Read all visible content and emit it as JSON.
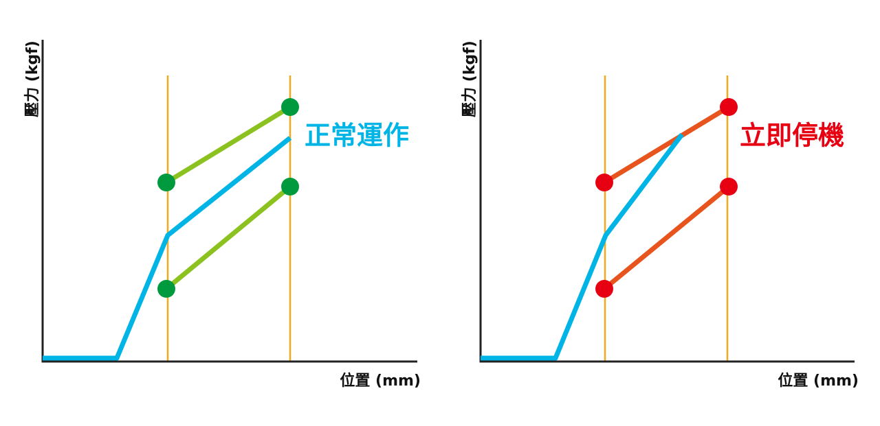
{
  "panels": [
    {
      "y_label": "壓力 (kgf)",
      "x_label": "位置 (mm)",
      "annotation": "正常運作"
    },
    {
      "y_label": "壓力 (kgf)",
      "x_label": "位置 (mm)",
      "annotation": "立即停機"
    }
  ]
}
